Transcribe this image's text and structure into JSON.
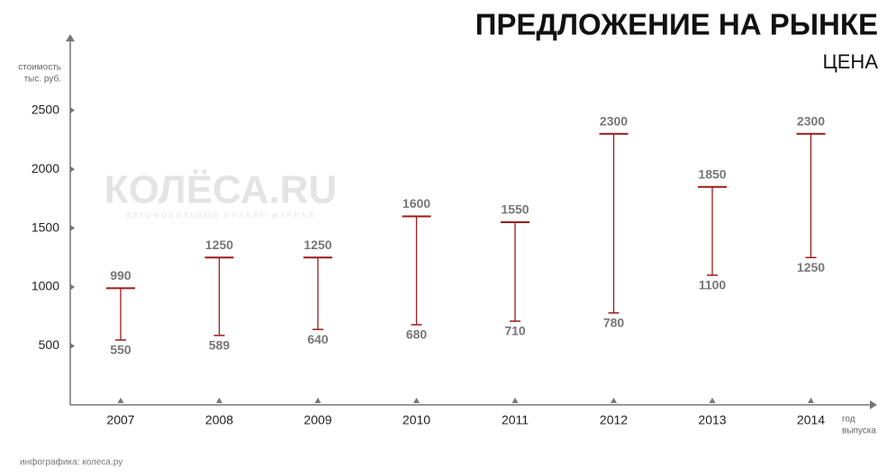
{
  "chart_data": {
    "type": "range",
    "title": "ПРЕДЛОЖЕНИЕ НА РЫНКЕ",
    "subtitle": "ЦЕНА",
    "y_label": [
      "стоимость",
      "тыс. руб."
    ],
    "x_label": [
      "год",
      "выпуска"
    ],
    "watermark": {
      "brand": "КОЛЁСА.RU",
      "tagline": "АВТОМОБИЛЬНЫЙ ОНЛАЙН-ЖУРНАЛ"
    },
    "footer": "инфографика: колеса.ру",
    "categories": [
      "2007",
      "2008",
      "2009",
      "2010",
      "2011",
      "2012",
      "2013",
      "2014"
    ],
    "series": [
      {
        "name": "min",
        "color": "#9b1b1b",
        "values": [
          550,
          589,
          640,
          680,
          710,
          780,
          1100,
          1250
        ]
      },
      {
        "name": "max",
        "color": "#9b1b1b",
        "values": [
          990,
          1250,
          1250,
          1600,
          1550,
          2300,
          1850,
          2300
        ]
      }
    ],
    "ylim": [
      0,
      3100
    ],
    "yticks": [
      500,
      1000,
      1500,
      2000,
      2500
    ]
  }
}
